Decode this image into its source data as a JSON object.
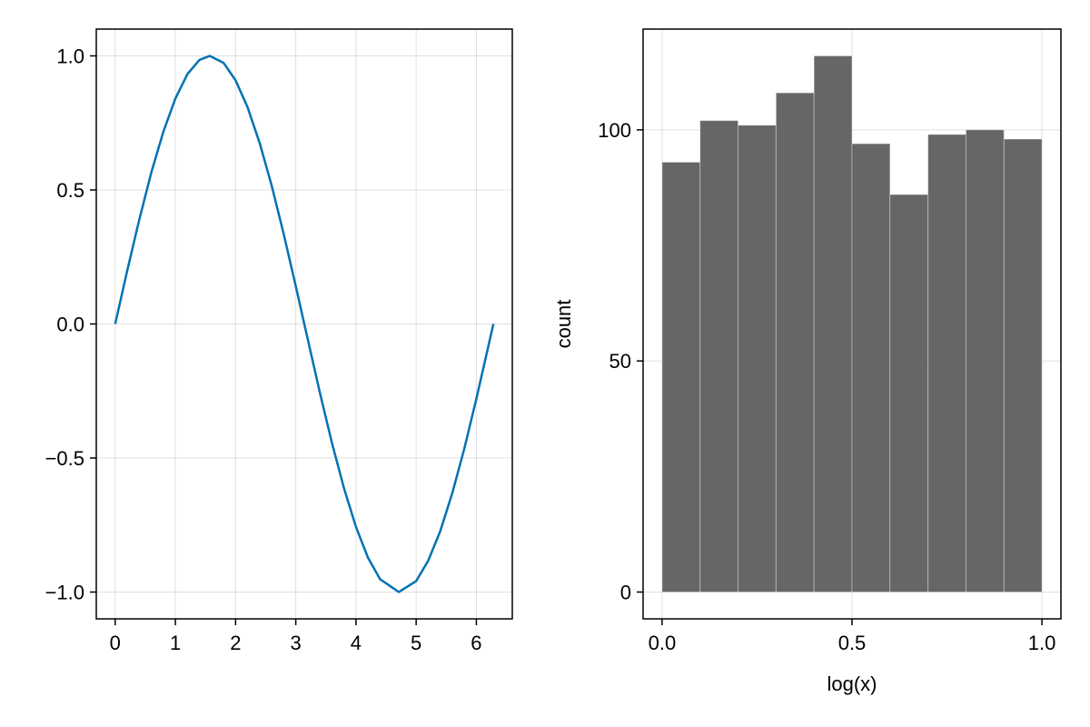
{
  "chart_data": [
    {
      "type": "line",
      "title": "",
      "xlabel": "",
      "ylabel": "",
      "xlim": [
        -0.314,
        6.597
      ],
      "ylim": [
        -1.1,
        1.1
      ],
      "xticks": [
        0,
        1,
        2,
        3,
        4,
        5,
        6
      ],
      "xtick_labels": [
        "0",
        "1",
        "2",
        "3",
        "4",
        "5",
        "6"
      ],
      "yticks": [
        -1.0,
        -0.5,
        0.0,
        0.5,
        1.0
      ],
      "ytick_labels": [
        "−1.0",
        "−0.5",
        "0.0",
        "0.5",
        "1.0"
      ],
      "grid": true,
      "series": [
        {
          "color": "#0072b2",
          "x": [
            0,
            0.2,
            0.4,
            0.6,
            0.8,
            1.0,
            1.2,
            1.4,
            1.5708,
            1.8,
            2.0,
            2.2,
            2.4,
            2.6,
            2.8,
            3.0,
            3.1416,
            3.4,
            3.6,
            3.8,
            4.0,
            4.2,
            4.4,
            4.7124,
            5.0,
            5.2,
            5.4,
            5.6,
            5.8,
            6.0,
            6.2832
          ],
          "y": [
            0,
            0.199,
            0.389,
            0.565,
            0.717,
            0.841,
            0.932,
            0.985,
            1.0,
            0.974,
            0.909,
            0.808,
            0.675,
            0.516,
            0.335,
            0.141,
            0.0,
            -0.256,
            -0.443,
            -0.612,
            -0.757,
            -0.872,
            -0.952,
            -1.0,
            -0.959,
            -0.883,
            -0.773,
            -0.631,
            -0.465,
            -0.279,
            0.0
          ]
        }
      ]
    },
    {
      "type": "bar",
      "title": "",
      "xlabel": "log(x)",
      "ylabel": "count",
      "xlim": [
        -0.05,
        1.05
      ],
      "ylim": [
        -5.8,
        121.8
      ],
      "xticks": [
        0.0,
        0.5,
        1.0
      ],
      "xtick_labels": [
        "0.0",
        "0.5",
        "1.0"
      ],
      "yticks": [
        0,
        50,
        100
      ],
      "ytick_labels": [
        "0",
        "50",
        "100"
      ],
      "grid": true,
      "bar_color": "#666666",
      "bins": [
        {
          "x0": 0.0,
          "x1": 0.1,
          "count": 93
        },
        {
          "x0": 0.1,
          "x1": 0.2,
          "count": 102
        },
        {
          "x0": 0.2,
          "x1": 0.3,
          "count": 101
        },
        {
          "x0": 0.3,
          "x1": 0.4,
          "count": 108
        },
        {
          "x0": 0.4,
          "x1": 0.5,
          "count": 116
        },
        {
          "x0": 0.5,
          "x1": 0.6,
          "count": 97
        },
        {
          "x0": 0.6,
          "x1": 0.7,
          "count": 86
        },
        {
          "x0": 0.7,
          "x1": 0.8,
          "count": 99
        },
        {
          "x0": 0.8,
          "x1": 0.9,
          "count": 100
        },
        {
          "x0": 0.9,
          "x1": 1.0,
          "count": 98
        }
      ]
    }
  ]
}
